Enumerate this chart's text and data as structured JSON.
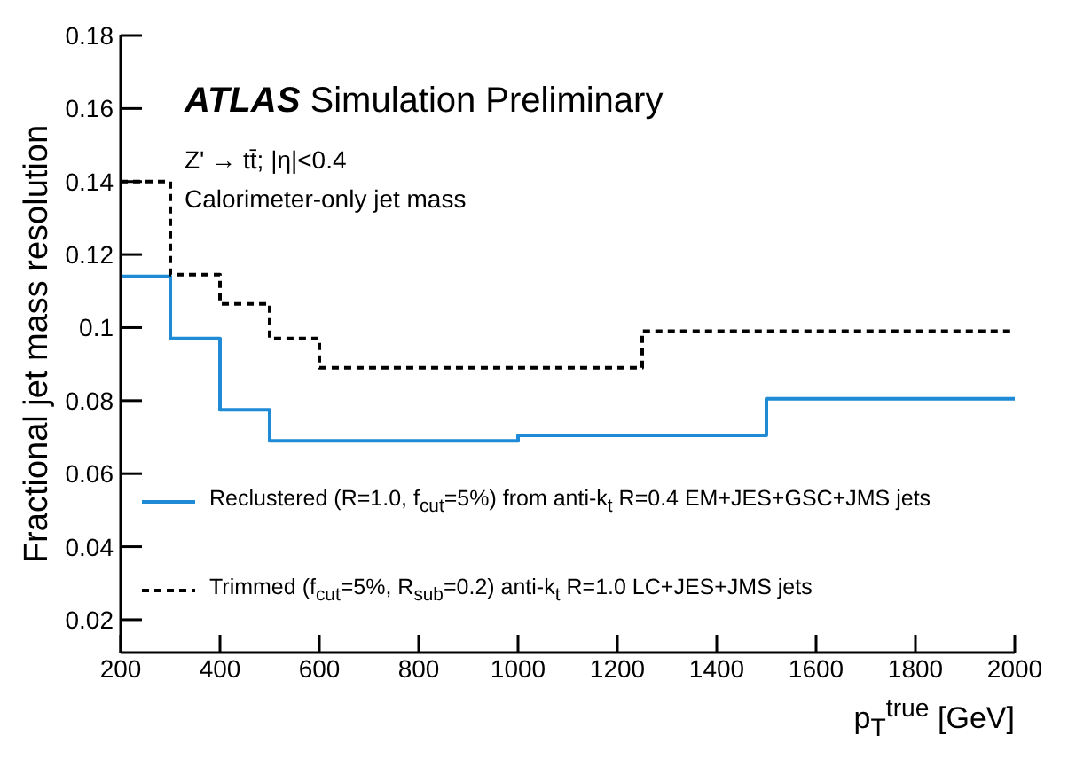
{
  "chart_data": {
    "type": "step",
    "xlabel": "p$_{T}$$^{true}$ [GeV]",
    "ylabel": "Fractional jet mass resolution",
    "annotations": [
      "ATLAS",
      "Simulation Preliminary",
      "Z' → tt̄; |η|<0.4",
      "Calorimeter-only jet mass"
    ],
    "xlim": [
      200,
      2000
    ],
    "xticks": [
      200,
      400,
      600,
      800,
      1000,
      1200,
      1400,
      1600,
      1800,
      2000
    ],
    "ylim": [
      0.011,
      0.18
    ],
    "yticks": [
      0.02,
      0.04,
      0.06,
      0.08,
      0.1,
      0.12,
      0.14,
      0.16,
      0.18
    ],
    "grid": false,
    "legend": "bottom left",
    "marker": "none",
    "series": [
      {
        "name": "Reclustered (R=1.0, f$_{cut}$=5%) from anti-k$_{t}$ R=0.4 EM+JES+GSC+JMS jets",
        "color": "#1f8ad6",
        "line_style": "solid",
        "x": [
          200,
          300,
          400,
          500,
          1000,
          1500,
          2000
        ],
        "values": [
          0.114,
          0.097,
          0.0775,
          0.069,
          0.0705,
          0.0805,
          0.0805
        ]
      },
      {
        "name": "Trimmed (f$_{cut}$=5%, R$_{sub}$=0.2) anti-k$_{t}$ R=1.0 LC+JES+JMS jets",
        "color": "#000000",
        "line_style": "dashed",
        "x": [
          200,
          300,
          400,
          500,
          600,
          1250,
          2000
        ],
        "values": [
          0.14,
          0.1145,
          0.1065,
          0.097,
          0.089,
          0.099,
          0.099
        ]
      }
    ]
  }
}
